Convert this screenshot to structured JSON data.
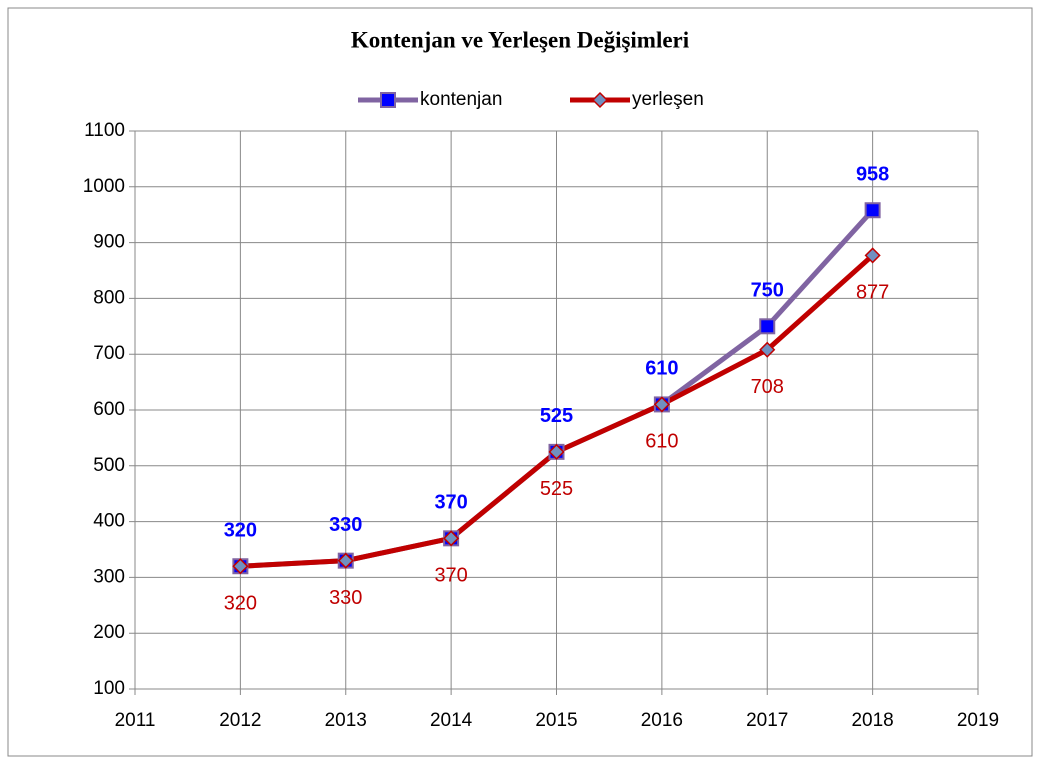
{
  "chart_data": {
    "type": "line",
    "title": "Kontenjan ve Yerleşen Değişimleri",
    "x": [
      2012,
      2013,
      2014,
      2015,
      2016,
      2017,
      2018
    ],
    "series": [
      {
        "name": "kontenjan",
        "color": "#8064a2",
        "marker": "square",
        "marker_color": "#0000ff",
        "label_color": "#0000ff",
        "label_position": "above",
        "values": [
          320,
          330,
          370,
          525,
          610,
          750,
          958
        ]
      },
      {
        "name": "yerleşen",
        "color": "#c00000",
        "marker": "diamond",
        "marker_color": "#7090c0",
        "label_color": "#c00000",
        "label_position": "below",
        "values": [
          320,
          330,
          370,
          525,
          610,
          708,
          877
        ]
      }
    ],
    "xlim": [
      2011,
      2019
    ],
    "xticks": [
      2011,
      2012,
      2013,
      2014,
      2015,
      2016,
      2017,
      2018,
      2019
    ],
    "ylim": [
      100,
      1100
    ],
    "yticks": [
      100,
      200,
      300,
      400,
      500,
      600,
      700,
      800,
      900,
      1000,
      1100
    ],
    "grid": true,
    "legend": "top"
  }
}
